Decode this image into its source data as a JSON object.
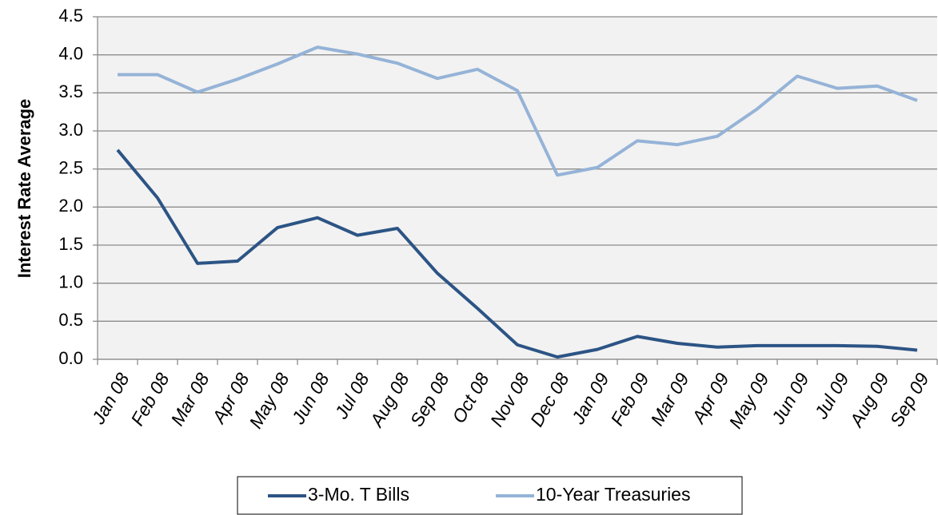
{
  "chart_data": {
    "type": "line",
    "y_label": "Interest Rate Average",
    "categories": [
      "Jan 08",
      "Feb 08",
      "Mar 08",
      "Apr 08",
      "May 08",
      "Jun 08",
      "Jul 08",
      "Aug 08",
      "Sep 08",
      "Oct 08",
      "Nov 08",
      "Dec 08",
      "Jan 09",
      "Feb 09",
      "Mar 09",
      "Apr 09",
      "May 09",
      "Jun 09",
      "Jul 09",
      "Aug 09",
      "Sep 09"
    ],
    "series": [
      {
        "name": "3-Mo. T Bills",
        "color": "#2c5485",
        "values": [
          2.75,
          2.12,
          1.26,
          1.29,
          1.73,
          1.86,
          1.63,
          1.72,
          1.13,
          0.67,
          0.19,
          0.03,
          0.13,
          0.3,
          0.21,
          0.16,
          0.18,
          0.18,
          0.18,
          0.17,
          0.12
        ]
      },
      {
        "name": "10-Year Treasuries",
        "color": "#95b3d7",
        "values": [
          3.74,
          3.74,
          3.51,
          3.68,
          3.88,
          4.1,
          4.01,
          3.89,
          3.69,
          3.81,
          3.53,
          2.42,
          2.52,
          2.87,
          2.82,
          2.93,
          3.29,
          3.72,
          3.56,
          3.59,
          3.4
        ]
      }
    ],
    "ylim": [
      0,
      4.5
    ],
    "yticks": [
      {
        "value": 0,
        "label": "0.0"
      },
      0.5,
      {
        "value": 1,
        "label": "1.0"
      },
      1.5,
      {
        "value": 2,
        "label": "2.0"
      },
      2.5,
      {
        "value": 3,
        "label": "3.0"
      },
      3.5,
      {
        "value": 4,
        "label": "4.0"
      },
      4.5
    ],
    "grid": true,
    "legend": "bottom"
  }
}
